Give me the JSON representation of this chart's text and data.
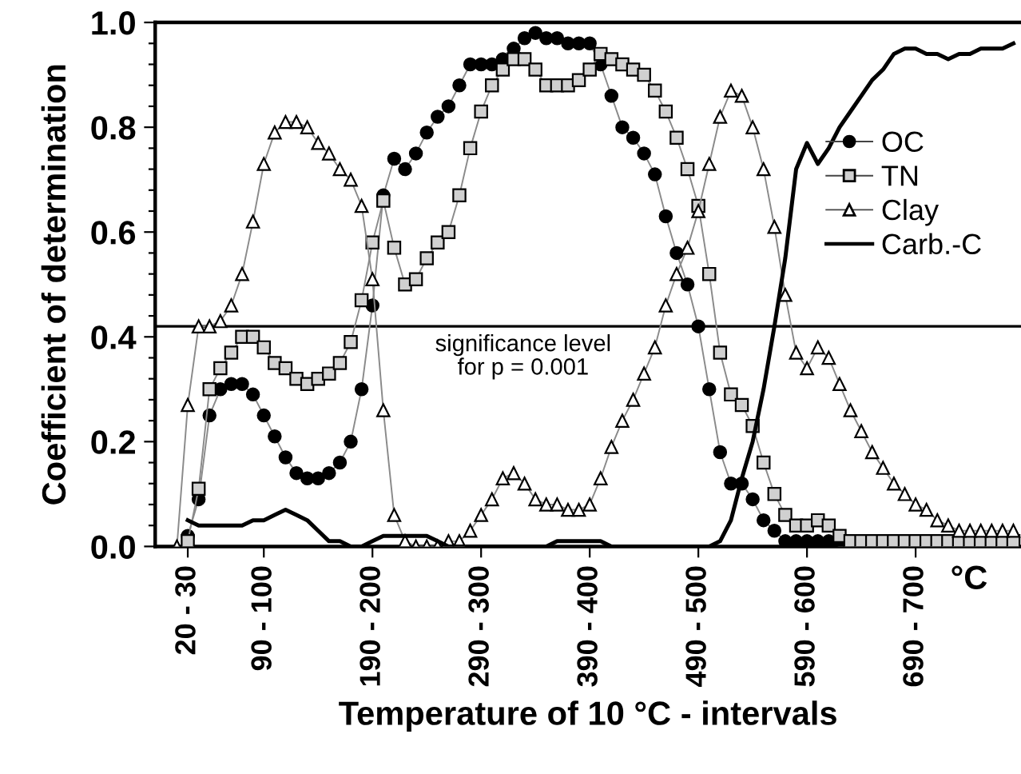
{
  "chart_data": {
    "type": "line",
    "xlabel": "Temperature of 10 °C - intervals",
    "ylabel": "Coefficient of determination",
    "categories": [
      null,
      "20 - 30",
      null,
      null,
      null,
      null,
      null,
      null,
      "90 - 100",
      null,
      null,
      null,
      null,
      null,
      null,
      null,
      null,
      null,
      "190 - 200",
      null,
      null,
      null,
      null,
      null,
      null,
      null,
      null,
      null,
      "290 - 300",
      null,
      null,
      null,
      null,
      null,
      null,
      null,
      null,
      null,
      "390 - 400",
      null,
      null,
      null,
      null,
      null,
      null,
      null,
      null,
      null,
      "490 - 500",
      null,
      null,
      null,
      null,
      null,
      null,
      null,
      null,
      null,
      "590 - 600",
      null,
      null,
      null,
      null,
      null,
      null,
      null,
      null,
      null,
      "690 - 700",
      null,
      null,
      null,
      null,
      null,
      null,
      null,
      null,
      null
    ],
    "ylim": [
      0,
      1
    ],
    "yticks": [
      {
        "value": 0,
        "label": "0.0"
      },
      {
        "value": 0.04,
        "label": null
      },
      {
        "value": 0.08,
        "label": null
      },
      {
        "value": 0.12,
        "label": null
      },
      {
        "value": 0.16,
        "label": null
      },
      {
        "value": 0.2,
        "label": "0.2"
      },
      {
        "value": 0.24,
        "label": null
      },
      {
        "value": 0.28,
        "label": null
      },
      {
        "value": 0.32,
        "label": null
      },
      {
        "value": 0.36,
        "label": null
      },
      {
        "value": 0.4,
        "label": "0.4"
      },
      {
        "value": 0.44,
        "label": null
      },
      {
        "value": 0.48,
        "label": null
      },
      {
        "value": 0.52,
        "label": null
      },
      {
        "value": 0.56,
        "label": null
      },
      {
        "value": 0.6,
        "label": "0.6"
      },
      {
        "value": 0.64,
        "label": null
      },
      {
        "value": 0.68,
        "label": null
      },
      {
        "value": 0.72,
        "label": null
      },
      {
        "value": 0.76,
        "label": null
      },
      {
        "value": 0.8,
        "label": "0.8"
      },
      {
        "value": 0.84,
        "label": null
      },
      {
        "value": 0.88,
        "label": null
      },
      {
        "value": 0.92,
        "label": null
      },
      {
        "value": 0.96,
        "label": null
      },
      {
        "value": 1,
        "label": "1.0"
      }
    ],
    "grid": false,
    "legend": "right",
    "ref_lines": [
      {
        "axis": "y",
        "value": 0.42,
        "color": "#000000",
        "line_style": "solid"
      }
    ],
    "annotations": [
      "significance level\nfor p = 0.001",
      "°C"
    ],
    "series": [
      {
        "name": "OC",
        "color": "#000000",
        "marker": "circle",
        "values": [
          null,
          0.02,
          0.09,
          0.25,
          0.3,
          0.31,
          0.31,
          0.29,
          0.25,
          0.21,
          0.17,
          0.14,
          0.13,
          0.13,
          0.14,
          0.16,
          0.2,
          0.3,
          0.46,
          0.67,
          0.74,
          0.72,
          0.75,
          0.79,
          0.82,
          0.84,
          0.88,
          0.92,
          0.92,
          0.92,
          0.93,
          0.95,
          0.97,
          0.98,
          0.97,
          0.97,
          0.96,
          0.96,
          0.96,
          0.92,
          0.86,
          0.8,
          0.78,
          0.75,
          0.71,
          0.63,
          0.56,
          0.5,
          0.42,
          0.3,
          0.18,
          0.12,
          0.12,
          0.09,
          0.05,
          0.03,
          0.01,
          0.01,
          0.01,
          0.01,
          0.01,
          0.0,
          0.0,
          null,
          null,
          null,
          null,
          null,
          null,
          null,
          null,
          null,
          null,
          null,
          null,
          null,
          null,
          null
        ]
      },
      {
        "name": "TN",
        "color": "#d0d0d0",
        "marker": "square",
        "values": [
          null,
          0.01,
          0.11,
          0.3,
          0.34,
          0.37,
          0.4,
          0.4,
          0.38,
          0.35,
          0.34,
          0.32,
          0.31,
          0.32,
          0.33,
          0.35,
          0.39,
          0.47,
          0.58,
          0.66,
          0.57,
          0.5,
          0.51,
          0.55,
          0.58,
          0.6,
          0.67,
          0.76,
          0.83,
          0.88,
          0.91,
          0.93,
          0.93,
          0.91,
          0.88,
          0.88,
          0.88,
          0.89,
          0.91,
          0.94,
          0.93,
          0.92,
          0.91,
          0.9,
          0.87,
          0.83,
          0.78,
          0.72,
          0.65,
          0.52,
          0.37,
          0.29,
          0.27,
          0.23,
          0.16,
          0.1,
          0.06,
          0.04,
          0.04,
          0.05,
          0.04,
          0.02,
          0.01,
          0.01,
          0.01,
          0.01,
          0.01,
          0.01,
          0.01,
          0.01,
          0.01,
          0.01,
          0.01,
          0.01,
          0.01,
          0.01,
          0.01,
          0.01
        ]
      },
      {
        "name": "Clay",
        "color": "#ffffff",
        "marker": "triangle",
        "values": [
          0.0,
          0.27,
          0.42,
          0.42,
          0.43,
          0.46,
          0.52,
          0.62,
          0.73,
          0.79,
          0.81,
          0.81,
          0.8,
          0.77,
          0.75,
          0.72,
          0.7,
          0.65,
          0.51,
          0.26,
          0.06,
          0.01,
          0.0,
          0.0,
          0.0,
          0.01,
          0.01,
          0.03,
          0.06,
          0.09,
          0.13,
          0.14,
          0.12,
          0.09,
          0.08,
          0.08,
          0.07,
          0.07,
          0.08,
          0.13,
          0.19,
          0.24,
          0.28,
          0.33,
          0.38,
          0.46,
          0.52,
          0.57,
          0.64,
          0.73,
          0.82,
          0.87,
          0.86,
          0.8,
          0.72,
          0.61,
          0.48,
          0.37,
          0.34,
          0.38,
          0.36,
          0.31,
          0.26,
          0.22,
          0.18,
          0.15,
          0.12,
          0.1,
          0.08,
          0.07,
          0.05,
          0.04,
          0.03,
          0.03,
          0.03,
          0.03,
          0.03,
          0.03
        ]
      },
      {
        "name": "Carb.-C",
        "color": "#000000",
        "marker": "none",
        "values": [
          null,
          0.05,
          0.04,
          0.04,
          0.04,
          0.04,
          0.04,
          0.05,
          0.05,
          0.06,
          0.07,
          0.06,
          0.05,
          0.03,
          0.01,
          0.01,
          0.0,
          0.0,
          0.01,
          0.02,
          0.02,
          0.02,
          0.02,
          0.02,
          0.01,
          0.0,
          0.0,
          0.0,
          0.0,
          0.0,
          0.0,
          0.0,
          0.0,
          0.0,
          0.0,
          0.01,
          0.01,
          0.01,
          0.01,
          0.01,
          0.0,
          0.0,
          0.0,
          0.0,
          0.0,
          0.0,
          0.0,
          0.0,
          0.0,
          0.0,
          0.01,
          0.05,
          0.13,
          0.2,
          0.3,
          0.42,
          0.55,
          0.72,
          0.77,
          0.73,
          0.76,
          0.8,
          0.83,
          0.86,
          0.89,
          0.91,
          0.94,
          0.95,
          0.95,
          0.94,
          0.94,
          0.93,
          0.94,
          0.94,
          0.95,
          0.95,
          0.95,
          0.96
        ]
      }
    ]
  }
}
